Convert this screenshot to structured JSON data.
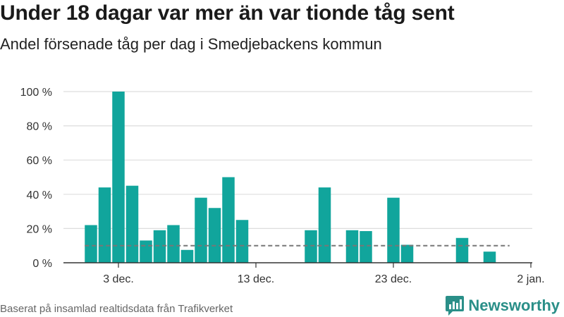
{
  "header": {
    "title": "Under 18 dagar var mer än var tionde tåg sent",
    "subtitle": "Andel försenade tåg per dag i Smedjebackens kommun"
  },
  "footer": {
    "source": "Baserat på insamlad realtidsdata från Trafikverket",
    "brand": "Newsworthy"
  },
  "colors": {
    "bar": "#11a59c",
    "reference_line": "#777777",
    "grid": "#dddddd",
    "brand": "#2a8f88"
  },
  "icons": {
    "brand_logo": "newsworthy-logo-icon"
  },
  "chart_data": {
    "type": "bar",
    "title": "Under 18 dagar var mer än var tionde tåg sent",
    "subtitle": "Andel försenade tåg per dag i Smedjebackens kommun",
    "xlabel": "",
    "ylabel": "",
    "ylim": [
      0,
      100
    ],
    "y_unit": "%",
    "yticks": [
      0,
      20,
      40,
      60,
      80,
      100
    ],
    "ytick_labels": [
      "0 %",
      "20 %",
      "40 %",
      "60 %",
      "80 %",
      "100 %"
    ],
    "xticks": [
      "2023-12-03",
      "2023-12-13",
      "2023-12-23",
      "2024-01-02"
    ],
    "xtick_labels": [
      "3 dec.",
      "13 dec.",
      "23 dec.",
      "2 jan."
    ],
    "x_range": [
      "2023-12-01",
      "2024-01-02"
    ],
    "categories": [
      "2023-12-01",
      "2023-12-02",
      "2023-12-03",
      "2023-12-04",
      "2023-12-05",
      "2023-12-06",
      "2023-12-07",
      "2023-12-08",
      "2023-12-09",
      "2023-12-10",
      "2023-12-11",
      "2023-12-12",
      "2023-12-13",
      "2023-12-14",
      "2023-12-15",
      "2023-12-16",
      "2023-12-17",
      "2023-12-18",
      "2023-12-19",
      "2023-12-20",
      "2023-12-21",
      "2023-12-22",
      "2023-12-23",
      "2023-12-24",
      "2023-12-25",
      "2023-12-26",
      "2023-12-27",
      "2023-12-28",
      "2023-12-29",
      "2023-12-30",
      "2023-12-31"
    ],
    "values": [
      22,
      44,
      100,
      45,
      13,
      19,
      22,
      7.5,
      38,
      32,
      50,
      25,
      0,
      0,
      0,
      0,
      19,
      44,
      0,
      19,
      18.5,
      0,
      38,
      10.5,
      0,
      0,
      0,
      14.5,
      0,
      6.5,
      0
    ],
    "reference_line": {
      "value": 10,
      "style": "dashed",
      "from": "2023-12-01",
      "to": "2023-12-31"
    },
    "grid": true,
    "legend": "none"
  }
}
